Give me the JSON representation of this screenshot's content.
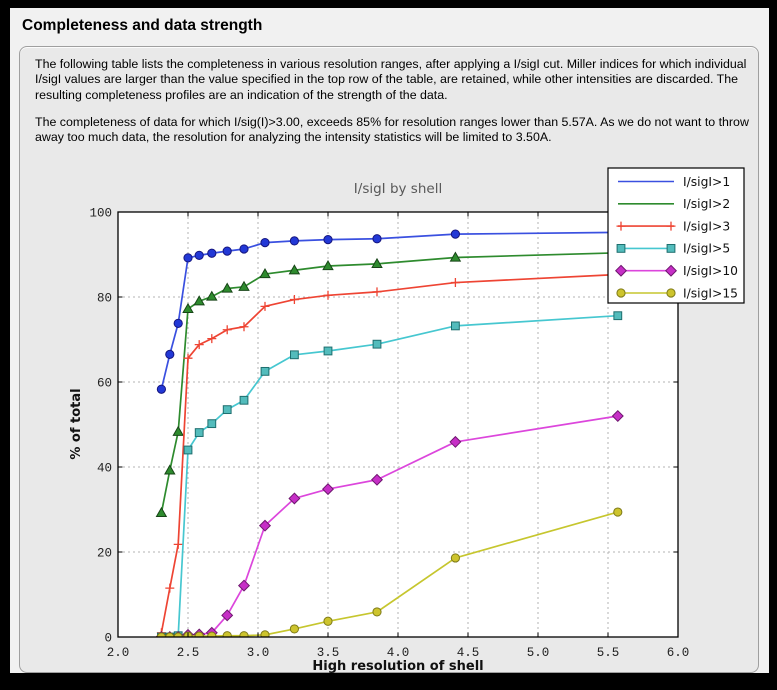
{
  "page": {
    "title": "Completeness and data strength",
    "paragraph1": "The following table lists the completeness in various resolution ranges, after applying a I/sigI cut. Miller indices for which individual I/sigI values are larger than the value specified in the top row of the table, are retained, while other intensities are discarded. The resulting completeness profiles are an indication of the strength of the data.",
    "paragraph2": "The completeness of data for which I/sig(I)>3.00, exceeds  85% for resolution ranges lower than 5.57A. As we do not want to throw away too much data, the resolution for analyzing the intensity statistics will be limited to 3.50A."
  },
  "chart_data": {
    "type": "line",
    "title": "I/sigI by shell",
    "xlabel": "High resolution of shell",
    "ylabel": "% of total",
    "xlim": [
      2.0,
      6.0
    ],
    "ylim": [
      0,
      100
    ],
    "xticks": [
      "2.0",
      "2.5",
      "3.0",
      "3.5",
      "4.0",
      "4.5",
      "5.0",
      "5.5",
      "6.0"
    ],
    "yticks": [
      "0",
      "20",
      "40",
      "60",
      "80",
      "100"
    ],
    "grid": "dashed",
    "legend_position": "upper-right",
    "x": [
      2.31,
      2.37,
      2.43,
      2.5,
      2.58,
      2.67,
      2.78,
      2.9,
      3.05,
      3.26,
      3.5,
      3.85,
      4.41,
      5.57
    ],
    "series": [
      {
        "name": "I/sigI>1",
        "color": "#3a50e0",
        "marker": "circle",
        "mfill": "#2238d6",
        "edge": "#15157e",
        "legend_marker": false,
        "values": [
          58.3,
          66.5,
          73.8,
          89.2,
          89.8,
          90.3,
          90.8,
          91.3,
          92.8,
          93.2,
          93.5,
          93.7,
          94.8,
          95.2
        ]
      },
      {
        "name": "I/sigI>2",
        "color": "#2e8b2e",
        "marker": "triangle",
        "mfill": "#2e8b2e",
        "edge": "#174517",
        "legend_marker": false,
        "values": [
          29.2,
          39.2,
          48.3,
          77.2,
          79.0,
          80.1,
          82.0,
          82.4,
          85.4,
          86.3,
          87.3,
          87.8,
          89.3,
          90.4
        ]
      },
      {
        "name": "I/sigI>3",
        "color": "#ee4433",
        "marker": "plus",
        "mfill": "#ee4433",
        "edge": "#ee4433",
        "legend_marker": true,
        "values": [
          1.0,
          11.5,
          21.8,
          65.6,
          68.8,
          70.2,
          72.3,
          73.0,
          77.8,
          79.4,
          80.4,
          81.2,
          83.4,
          85.3
        ]
      },
      {
        "name": "I/sigI>5",
        "color": "#46c7d0",
        "marker": "square",
        "mfill": "#53bcbc",
        "edge": "#1e6e6e",
        "legend_marker": true,
        "values": [
          0,
          0,
          0.3,
          44.0,
          48.1,
          50.2,
          53.5,
          55.7,
          62.5,
          66.4,
          67.3,
          68.9,
          73.2,
          75.6
        ]
      },
      {
        "name": "I/sigI>10",
        "color": "#dc46dc",
        "marker": "diamond",
        "mfill": "#c62fc6",
        "edge": "#6e176e",
        "legend_marker": true,
        "values": [
          0,
          0,
          0,
          0.5,
          0.6,
          1.0,
          5.1,
          12.1,
          26.2,
          32.6,
          34.8,
          37.0,
          45.9,
          52.0
        ]
      },
      {
        "name": "I/sigI>15",
        "color": "#c6c62e",
        "marker": "circle",
        "mfill": "#cdc42d",
        "edge": "#7e7a18",
        "legend_marker": true,
        "values": [
          0,
          0,
          0,
          0.2,
          0.2,
          0.2,
          0.3,
          0.3,
          0.5,
          1.9,
          3.7,
          5.9,
          18.6,
          29.4
        ]
      }
    ]
  }
}
